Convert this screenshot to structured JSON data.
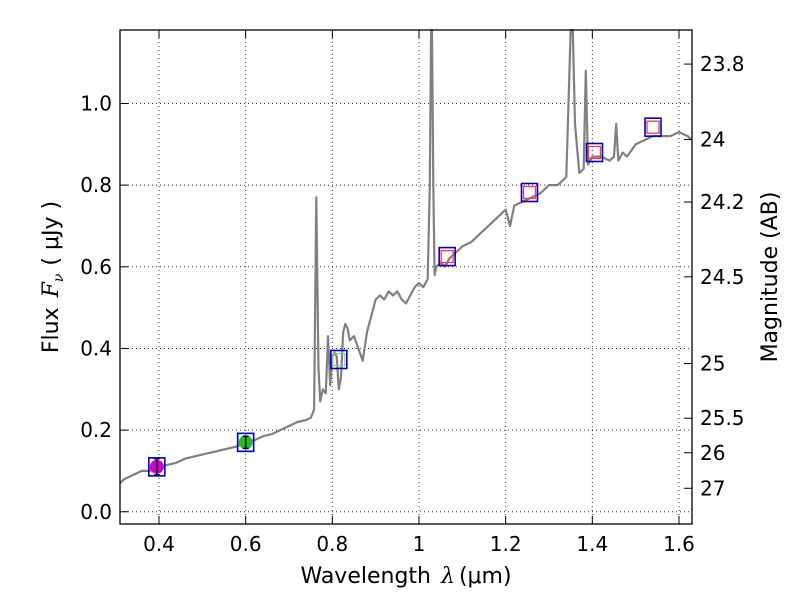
{
  "chart_data": {
    "type": "line",
    "x_axis": {
      "label_prefix": "Wavelength",
      "symbol": "λ",
      "unit": "(μm)",
      "range": [
        0.31,
        1.63
      ],
      "ticks": [
        0.4,
        0.6,
        0.8,
        1.0,
        1.2,
        1.4,
        1.6
      ],
      "tick_labels": [
        "0.4",
        "0.6",
        "0.8",
        "1",
        "1.2",
        "1.4",
        "1.6"
      ]
    },
    "y_axis": {
      "label_prefix": "Flux",
      "symbol": "F",
      "symbol_sub": "ν",
      "unit": "( μJy )",
      "range": [
        -0.03,
        1.18
      ],
      "ticks": [
        0.0,
        0.2,
        0.4,
        0.6,
        0.8,
        1.0
      ],
      "tick_labels": [
        "0.0",
        "0.2",
        "0.4",
        "0.6",
        "0.8",
        "1.0"
      ]
    },
    "y2_axis": {
      "label": "Magnitude (AB)",
      "ticks": [
        {
          "label": "23.8",
          "flux": 1.0965
        },
        {
          "label": "24",
          "flux": 0.912
        },
        {
          "label": "24.2",
          "flux": 0.7586
        },
        {
          "label": "24.5",
          "flux": 0.5754
        },
        {
          "label": "25",
          "flux": 0.3631
        },
        {
          "label": "25.5",
          "flux": 0.2291
        },
        {
          "label": "26",
          "flux": 0.1445
        },
        {
          "label": "27",
          "flux": 0.0575
        }
      ]
    },
    "grid": true,
    "series": [
      {
        "name": "spectrum",
        "color": "#808080",
        "x": [
          0.31,
          0.32,
          0.34,
          0.36,
          0.38,
          0.4,
          0.42,
          0.44,
          0.46,
          0.48,
          0.5,
          0.52,
          0.54,
          0.56,
          0.58,
          0.6,
          0.62,
          0.64,
          0.66,
          0.68,
          0.7,
          0.72,
          0.74,
          0.75,
          0.758,
          0.763,
          0.768,
          0.772,
          0.778,
          0.785,
          0.79,
          0.795,
          0.8,
          0.805,
          0.81,
          0.815,
          0.82,
          0.825,
          0.83,
          0.835,
          0.84,
          0.85,
          0.86,
          0.87,
          0.88,
          0.89,
          0.9,
          0.91,
          0.92,
          0.93,
          0.94,
          0.95,
          0.96,
          0.97,
          0.98,
          0.99,
          1.0,
          1.01,
          1.02,
          1.025,
          1.028,
          1.03,
          1.033,
          1.036,
          1.04,
          1.05,
          1.06,
          1.07,
          1.08,
          1.09,
          1.1,
          1.12,
          1.14,
          1.16,
          1.18,
          1.2,
          1.21,
          1.22,
          1.24,
          1.26,
          1.28,
          1.3,
          1.32,
          1.33,
          1.34,
          1.345,
          1.35,
          1.355,
          1.36,
          1.37,
          1.38,
          1.385,
          1.39,
          1.4,
          1.42,
          1.44,
          1.45,
          1.455,
          1.46,
          1.465,
          1.47,
          1.48,
          1.5,
          1.52,
          1.54,
          1.56,
          1.58,
          1.6,
          1.62,
          1.63
        ],
        "values": [
          0.07,
          0.08,
          0.09,
          0.1,
          0.1,
          0.11,
          0.115,
          0.12,
          0.13,
          0.135,
          0.14,
          0.145,
          0.15,
          0.155,
          0.16,
          0.17,
          0.175,
          0.185,
          0.19,
          0.2,
          0.21,
          0.22,
          0.225,
          0.23,
          0.25,
          0.77,
          0.35,
          0.27,
          0.3,
          0.29,
          0.43,
          0.31,
          0.38,
          0.39,
          0.38,
          0.3,
          0.33,
          0.44,
          0.46,
          0.45,
          0.42,
          0.43,
          0.4,
          0.37,
          0.44,
          0.48,
          0.52,
          0.53,
          0.52,
          0.54,
          0.53,
          0.54,
          0.52,
          0.51,
          0.53,
          0.55,
          0.56,
          0.55,
          0.57,
          0.8,
          1.18,
          1.18,
          0.8,
          0.58,
          0.6,
          0.61,
          0.6,
          0.62,
          0.63,
          0.64,
          0.65,
          0.66,
          0.68,
          0.7,
          0.72,
          0.74,
          0.7,
          0.75,
          0.76,
          0.77,
          0.78,
          0.8,
          0.8,
          0.81,
          0.82,
          1.0,
          1.18,
          1.18,
          0.95,
          0.83,
          0.84,
          1.08,
          0.85,
          0.87,
          0.87,
          0.86,
          0.87,
          0.95,
          0.86,
          0.87,
          0.88,
          0.87,
          0.9,
          0.91,
          0.92,
          0.92,
          0.92,
          0.93,
          0.92,
          0.91
        ]
      }
    ],
    "photometry": [
      {
        "x": 0.395,
        "model": 0.11,
        "observed": 0.11,
        "error": 0.02,
        "observed_color": "#cc00cc"
      },
      {
        "x": 0.6,
        "model": 0.17,
        "observed": 0.17,
        "error": 0.015,
        "observed_color": "#22bb22"
      },
      {
        "x": 0.815,
        "model": 0.373,
        "observed": 0.373,
        "error": 0.0,
        "observed_color": "#88cc88"
      },
      {
        "x": 1.065,
        "model": 0.625,
        "observed": 0.625,
        "error": 0.0,
        "observed_color": "#ff3333"
      },
      {
        "x": 1.255,
        "model": 0.782,
        "observed": 0.782,
        "error": 0.0,
        "observed_color": "#ff3333"
      },
      {
        "x": 1.405,
        "model": 0.88,
        "observed": 0.88,
        "error": 0.0,
        "observed_color": "#ff3333"
      },
      {
        "x": 1.54,
        "model": 0.942,
        "observed": 0.942,
        "error": 0.0,
        "observed_color": "#ff3333"
      }
    ],
    "model_marker_color": "#0000cc"
  }
}
